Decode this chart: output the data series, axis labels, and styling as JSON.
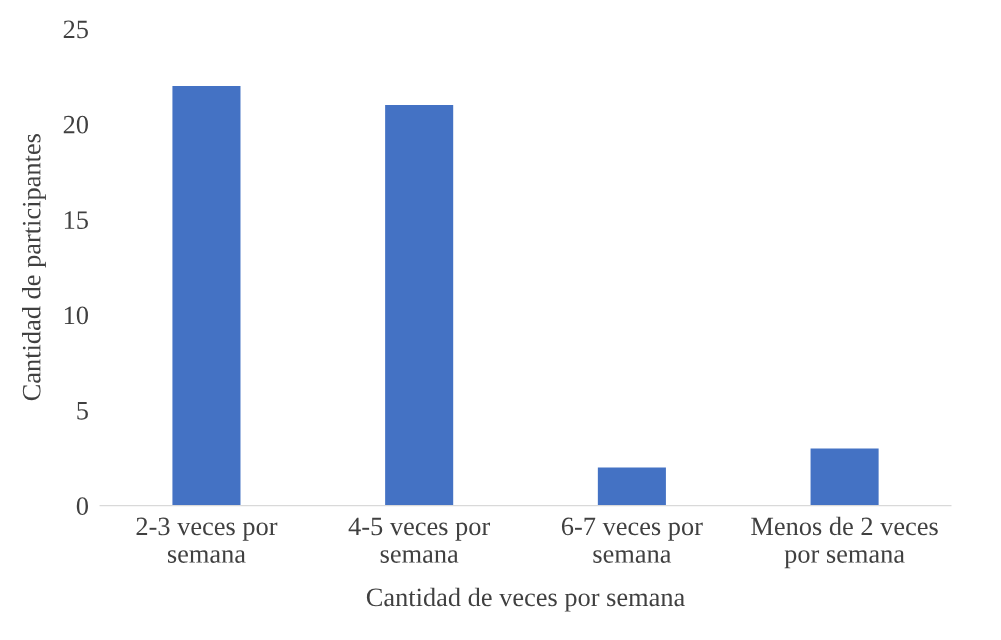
{
  "chart_data": {
    "type": "bar",
    "categories": [
      "2-3 veces por\nsemana",
      "4-5 veces por\nsemana",
      "6-7 veces por\nsemana",
      "Menos de 2 veces\npor semana"
    ],
    "values": [
      22,
      21,
      2,
      3
    ],
    "color": "#4472c4",
    "xlabel": "Cantidad de veces por semana",
    "ylabel": "Cantidad de participantes",
    "ylim": [
      0,
      25
    ],
    "yticks": [
      0,
      5,
      10,
      15,
      20,
      25
    ],
    "grid": false
  }
}
